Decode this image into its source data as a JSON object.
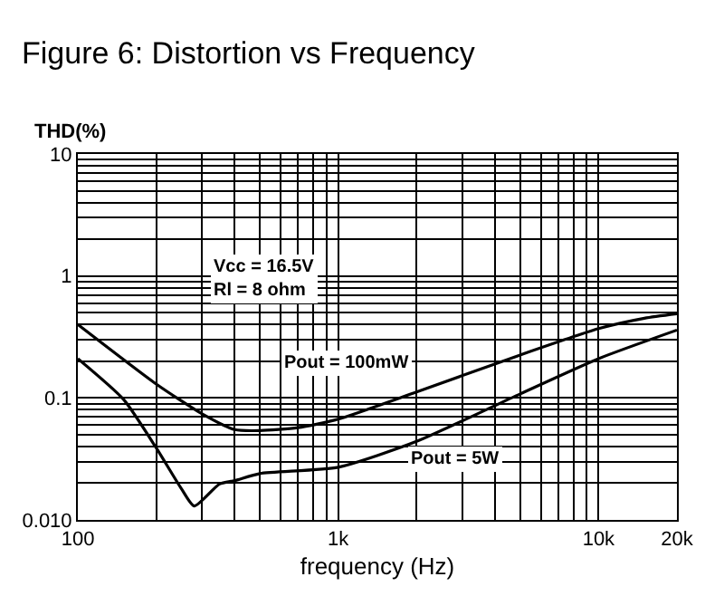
{
  "chart_data": {
    "type": "line",
    "title": "Figure 6: Distortion vs Frequency",
    "xlabel": "frequency (Hz)",
    "ylabel": "THD(%)",
    "log": "xy",
    "grid": true,
    "legend": false,
    "marker": "none",
    "line_style": "solid",
    "xlim": [
      100,
      20000
    ],
    "ylim": [
      0.01,
      10
    ],
    "xticks": [
      {
        "value": 100,
        "label": "100"
      },
      {
        "value": 1000,
        "label": "1k"
      },
      {
        "value": 10000,
        "label": "10k"
      },
      {
        "value": 20000,
        "label": "20k"
      }
    ],
    "yticks": [
      {
        "value": 0.01,
        "label": "0.010"
      },
      0.1,
      1,
      10
    ],
    "series": [
      {
        "color": "#000000",
        "x": [
          100,
          200,
          300,
          400,
          500,
          700,
          1000,
          2000,
          5000,
          10000,
          15000,
          20000
        ],
        "values": [
          0.4,
          0.13,
          0.074,
          0.055,
          0.054,
          0.057,
          0.067,
          0.112,
          0.225,
          0.37,
          0.45,
          0.49
        ]
      },
      {
        "color": "#000000",
        "x": [
          100,
          150,
          200,
          250,
          280,
          350,
          400,
          500,
          1000,
          2000,
          5000,
          10000,
          20000
        ],
        "values": [
          0.21,
          0.097,
          0.039,
          0.018,
          0.013,
          0.0197,
          0.021,
          0.024,
          0.027,
          0.044,
          0.108,
          0.21,
          0.36
        ]
      }
    ],
    "annotations": [
      "Vcc = 16.5V\nRl = 8 ohm",
      "Pout = 100mW",
      "Pout = 5W"
    ]
  }
}
